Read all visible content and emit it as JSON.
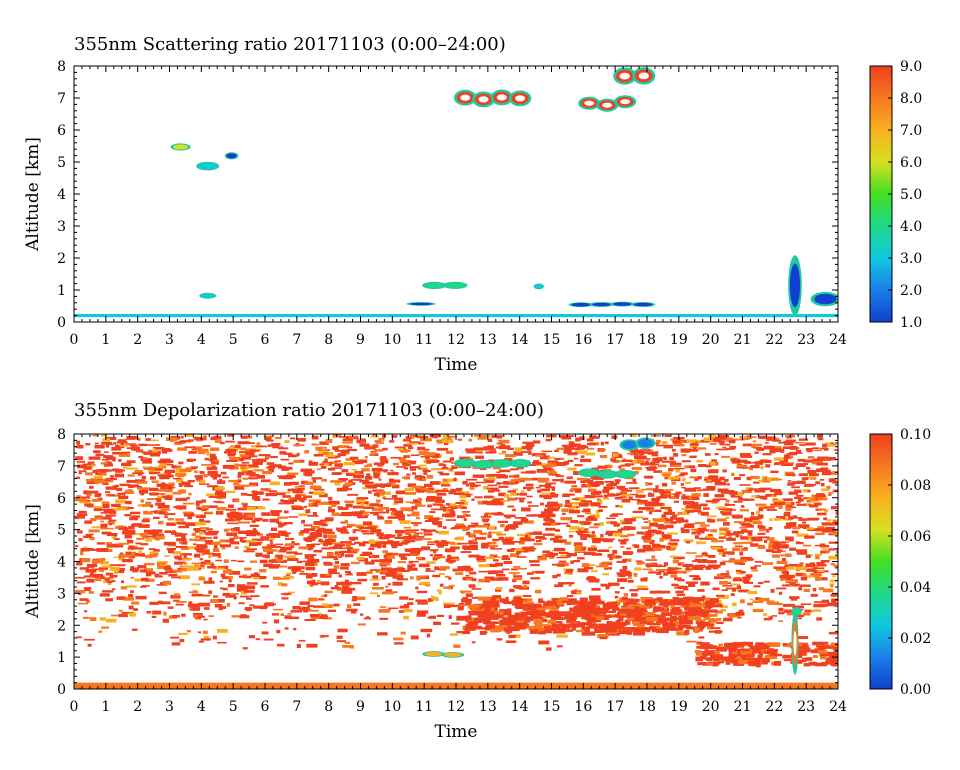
{
  "chart_data": [
    {
      "type": "heatmap",
      "title": "355nm Scattering ratio  20171103 (0:00–24:00)",
      "xlabel": "Time",
      "ylabel": "Altitude [km]",
      "xlim": [
        0,
        24
      ],
      "ylim": [
        0,
        8
      ],
      "x_ticks": [
        "0",
        "1",
        "2",
        "3",
        "4",
        "5",
        "6",
        "7",
        "8",
        "9",
        "10",
        "11",
        "12",
        "13",
        "14",
        "15",
        "16",
        "17",
        "18",
        "19",
        "20",
        "21",
        "22",
        "23",
        "24"
      ],
      "y_ticks": [
        "0",
        "1",
        "2",
        "3",
        "4",
        "5",
        "6",
        "7",
        "8"
      ],
      "colorbar": {
        "min": 1.0,
        "max": 9.0,
        "ticks": [
          "1.0",
          "2.0",
          "3.0",
          "4.0",
          "5.0",
          "6.0",
          "7.0",
          "8.0",
          "9.0"
        ],
        "colors": [
          "#1040d0",
          "#1a7fe8",
          "#10c8e0",
          "#20d88a",
          "#40e020",
          "#d8e020",
          "#f8b020",
          "#f87820",
          "#f04020"
        ]
      },
      "features": [
        {
          "kind": "surface_layer",
          "t": [
            0,
            24
          ],
          "alt": [
            0.15,
            0.25
          ],
          "value": 3.5
        },
        {
          "kind": "cloud",
          "t": [
            3.1,
            3.6
          ],
          "alt": [
            5.35,
            5.6
          ],
          "value": 5.5
        },
        {
          "kind": "cloud",
          "t": [
            3.9,
            4.5
          ],
          "alt": [
            4.7,
            5.0
          ],
          "value": 3.5
        },
        {
          "kind": "cloud",
          "t": [
            4.8,
            5.1
          ],
          "alt": [
            5.1,
            5.35
          ],
          "value": 1.8
        },
        {
          "kind": "cloud",
          "t": [
            12.0,
            14.3
          ],
          "alt": [
            6.75,
            7.3
          ],
          "value": 8.5
        },
        {
          "kind": "cloud",
          "t": [
            15.9,
            17.6
          ],
          "alt": [
            6.6,
            7.05
          ],
          "value": 8.5
        },
        {
          "kind": "cloud",
          "t": [
            17.0,
            18.2
          ],
          "alt": [
            7.4,
            8.0
          ],
          "value": 8.5
        },
        {
          "kind": "cloud",
          "t": [
            11.0,
            12.3
          ],
          "alt": [
            1.0,
            1.25
          ],
          "value": 4.0
        },
        {
          "kind": "cloud",
          "t": [
            4.0,
            4.4
          ],
          "alt": [
            0.75,
            0.95
          ],
          "value": 3.0
        },
        {
          "kind": "cloud",
          "t": [
            14.5,
            14.7
          ],
          "alt": [
            1.0,
            1.2
          ],
          "value": 3.0
        },
        {
          "kind": "cloud",
          "t": [
            10.5,
            11.3
          ],
          "alt": [
            0.5,
            0.6
          ],
          "value": 1.3
        },
        {
          "kind": "cloud",
          "t": [
            15.6,
            18.2
          ],
          "alt": [
            0.45,
            0.62
          ],
          "value": 1.3
        },
        {
          "kind": "cloud",
          "t": [
            22.5,
            22.8
          ],
          "alt": [
            0.4,
            2.5
          ],
          "value": 1.8
        },
        {
          "kind": "cloud",
          "t": [
            23.2,
            24.0
          ],
          "alt": [
            0.4,
            0.9
          ],
          "value": 1.8
        }
      ]
    },
    {
      "type": "heatmap",
      "title": "355nm Depolarization ratio  20171103 (0:00–24:00)",
      "xlabel": "Time",
      "ylabel": "Altitude [km]",
      "xlim": [
        0,
        24
      ],
      "ylim": [
        0,
        8
      ],
      "x_ticks": [
        "0",
        "1",
        "2",
        "3",
        "4",
        "5",
        "6",
        "7",
        "8",
        "9",
        "10",
        "11",
        "12",
        "13",
        "14",
        "15",
        "16",
        "17",
        "18",
        "19",
        "20",
        "21",
        "22",
        "23",
        "24"
      ],
      "y_ticks": [
        "0",
        "1",
        "2",
        "3",
        "4",
        "5",
        "6",
        "7",
        "8"
      ],
      "colorbar": {
        "min": 0.0,
        "max": 0.1,
        "ticks": [
          "0.00",
          "0.02",
          "0.04",
          "0.06",
          "0.08",
          "0.10"
        ],
        "colors": [
          "#1040d0",
          "#1a7fe8",
          "#10c8e0",
          "#20d88a",
          "#40e020",
          "#d8e020",
          "#f8b020",
          "#f87820",
          "#f04020"
        ]
      },
      "features": [
        {
          "kind": "noise_field",
          "t": [
            0,
            24
          ],
          "alt": [
            3.5,
            8.0
          ],
          "value": 0.095,
          "coverage": 0.85
        },
        {
          "kind": "noise_field",
          "t": [
            0,
            24
          ],
          "alt": [
            2.2,
            3.5
          ],
          "value": 0.095,
          "coverage": 0.45
        },
        {
          "kind": "noise_field",
          "t": [
            0,
            24
          ],
          "alt": [
            1.3,
            2.2
          ],
          "value": 0.095,
          "coverage": 0.12
        },
        {
          "kind": "layer",
          "t": [
            12.0,
            20.0
          ],
          "alt": [
            1.8,
            2.9
          ],
          "value": 0.092
        },
        {
          "kind": "layer",
          "t": [
            19.5,
            24.0
          ],
          "alt": [
            0.8,
            1.5
          ],
          "value": 0.09
        },
        {
          "kind": "surface_layer",
          "t": [
            0,
            24
          ],
          "alt": [
            0.0,
            0.2
          ],
          "value": 0.085
        },
        {
          "kind": "cloud",
          "t": [
            12.0,
            14.3
          ],
          "alt": [
            6.9,
            7.2
          ],
          "value": 0.035
        },
        {
          "kind": "cloud",
          "t": [
            15.9,
            17.6
          ],
          "alt": [
            6.6,
            6.9
          ],
          "value": 0.035
        },
        {
          "kind": "cloud",
          "t": [
            17.2,
            18.2
          ],
          "alt": [
            7.5,
            7.9
          ],
          "value": 0.022
        },
        {
          "kind": "cloud",
          "t": [
            22.6,
            22.8
          ],
          "alt": [
            2.3,
            2.6
          ],
          "value": 0.04
        },
        {
          "kind": "cloud",
          "t": [
            22.6,
            22.7
          ],
          "alt": [
            0.1,
            2.3
          ],
          "value": 0.085
        },
        {
          "kind": "cloud",
          "t": [
            11.0,
            12.2
          ],
          "alt": [
            1.0,
            1.2
          ],
          "value": 0.075
        }
      ]
    }
  ]
}
